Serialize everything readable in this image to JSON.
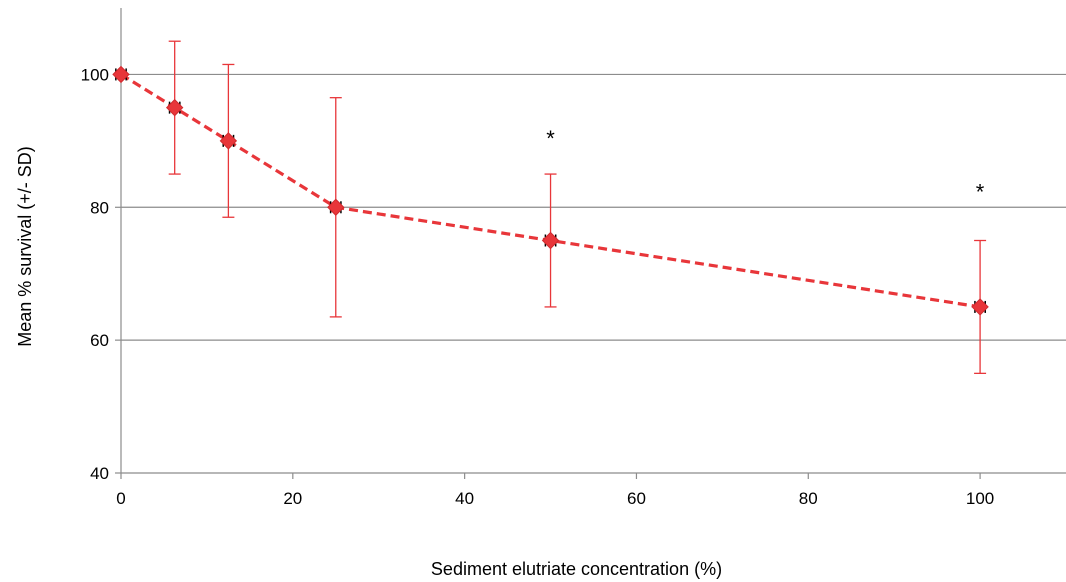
{
  "chart_data": {
    "type": "line",
    "title": "",
    "xlabel": "Sediment elutriate concentration (%)",
    "ylabel": "Mean % survival (+/- SD)",
    "xlim": [
      0,
      110
    ],
    "ylim": [
      40,
      110
    ],
    "xticks": [
      0,
      20,
      40,
      60,
      80,
      100
    ],
    "yticks": [
      40,
      60,
      80,
      100
    ],
    "grid": "horizontal",
    "legend": "none",
    "series": [
      {
        "x": [
          0,
          6.25,
          12.5,
          25,
          50,
          100
        ],
        "y": [
          100,
          95,
          90,
          80,
          75,
          65
        ],
        "yerr": [
          0,
          10,
          11.5,
          16.5,
          10,
          10
        ],
        "xerr": [
          0.6,
          0.6,
          0.6,
          0.6,
          0.6,
          0.6
        ],
        "color": "#e8363a",
        "line_style": "dashed",
        "marker": "diamond"
      }
    ],
    "annotations": [
      {
        "text": "*",
        "x": 50,
        "y": 91
      },
      {
        "text": "*",
        "x": 100,
        "y": 83
      }
    ]
  }
}
